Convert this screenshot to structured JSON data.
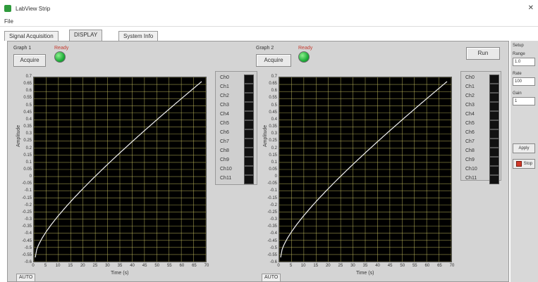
{
  "window": {
    "title": "LabView Strip",
    "close_glyph": "✕"
  },
  "menu": {
    "file": "File"
  },
  "tabs": [
    {
      "label": "Signal Acquisition"
    },
    {
      "label": "DISPLAY"
    },
    {
      "label": "System Info"
    }
  ],
  "left": {
    "title": "Graph 1",
    "status": "Ready",
    "button": "Acquire",
    "ylabel": "Amplitude",
    "xlabel": "Time (s)",
    "yticks": [
      "0.7",
      "0.65",
      "0.6",
      "0.55",
      "0.5",
      "0.45",
      "0.4",
      "0.35",
      "0.3",
      "0.25",
      "0.2",
      "0.15",
      "0.1",
      "0.05",
      "0",
      "-0.05",
      "-0.1",
      "-0.15",
      "-0.2",
      "-0.25",
      "-0.3",
      "-0.35",
      "-0.4",
      "-0.45",
      "-0.5",
      "-0.55",
      "-0.6"
    ],
    "xticks": [
      "0",
      "5",
      "10",
      "15",
      "20",
      "25",
      "30",
      "35",
      "40",
      "45",
      "50",
      "55",
      "60",
      "65",
      "70"
    ],
    "channels": [
      "Ch0",
      "Ch1",
      "Ch2",
      "Ch3",
      "Ch4",
      "Ch5",
      "Ch6",
      "Ch7",
      "Ch8",
      "Ch9",
      "Ch10",
      "Ch11"
    ],
    "scale_tab": "AUTO"
  },
  "right": {
    "title": "Graph 2",
    "status": "Ready",
    "button": "Acquire",
    "run_button": "Run",
    "ylabel": "Amplitude",
    "xlabel": "Time (s)",
    "yticks": [
      "0.7",
      "0.65",
      "0.6",
      "0.55",
      "0.5",
      "0.45",
      "0.4",
      "0.35",
      "0.3",
      "0.25",
      "0.2",
      "0.15",
      "0.1",
      "0.05",
      "0",
      "-0.05",
      "-0.1",
      "-0.15",
      "-0.2",
      "-0.25",
      "-0.3",
      "-0.35",
      "-0.4",
      "-0.45",
      "-0.5",
      "-0.55",
      "-0.6"
    ],
    "xticks": [
      "0",
      "5",
      "10",
      "15",
      "20",
      "25",
      "30",
      "35",
      "40",
      "45",
      "50",
      "55",
      "60",
      "65",
      "70"
    ],
    "channels": [
      "Ch0",
      "Ch1",
      "Ch2",
      "Ch3",
      "Ch4",
      "Ch5",
      "Ch6",
      "Ch7",
      "Ch8",
      "Ch9",
      "Ch10",
      "Ch11"
    ],
    "scale_tab": "AUTO"
  },
  "side": {
    "label1": "Setup",
    "label2": "Range",
    "field1": "1.0",
    "label3": "Rate",
    "field2": "100",
    "label4": "Gain",
    "field3": "1",
    "button1": "Apply",
    "stop_label": "Stop"
  },
  "colors": {
    "plot_bg": "#000000",
    "grid": "#d8d36a",
    "trace": "#f2f2f2",
    "led": "#1fae3a",
    "status": "#c53b2f"
  },
  "icons": {
    "app": "labview-app-icon",
    "stop": "stop-icon",
    "led": "status-led-icon"
  }
}
